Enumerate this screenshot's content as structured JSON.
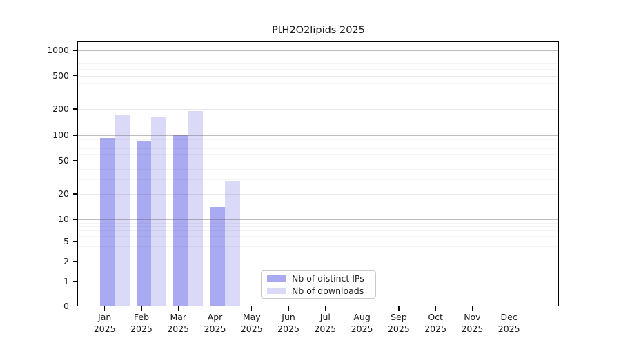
{
  "chart_data": {
    "type": "bar",
    "title": "PtH2O2lipids 2025",
    "categories": [
      "Jan 2025",
      "Feb 2025",
      "Mar 2025",
      "Apr 2025",
      "May 2025",
      "Jun 2025",
      "Jul 2025",
      "Aug 2025",
      "Sep 2025",
      "Oct 2025",
      "Nov 2025",
      "Dec 2025"
    ],
    "x_months": [
      "Jan",
      "Feb",
      "Mar",
      "Apr",
      "May",
      "Jun",
      "Jul",
      "Aug",
      "Sep",
      "Oct",
      "Nov",
      "Dec"
    ],
    "x_year": "2025",
    "series": [
      {
        "name": "Nb of distinct IPs",
        "color": "#aaaaf2",
        "values": [
          92,
          86,
          100,
          14,
          0,
          0,
          0,
          0,
          0,
          0,
          0,
          0
        ]
      },
      {
        "name": "Nb of downloads",
        "color": "#dadaf8",
        "values": [
          170,
          160,
          190,
          29,
          0,
          0,
          0,
          0,
          0,
          0,
          0,
          0
        ]
      }
    ],
    "yscale": "symlog",
    "yticks": [
      0,
      1,
      2,
      5,
      10,
      20,
      50,
      100,
      200,
      500,
      1000
    ],
    "ylim": [
      0,
      1250
    ],
    "grid": true,
    "legend_position": "lower center"
  }
}
